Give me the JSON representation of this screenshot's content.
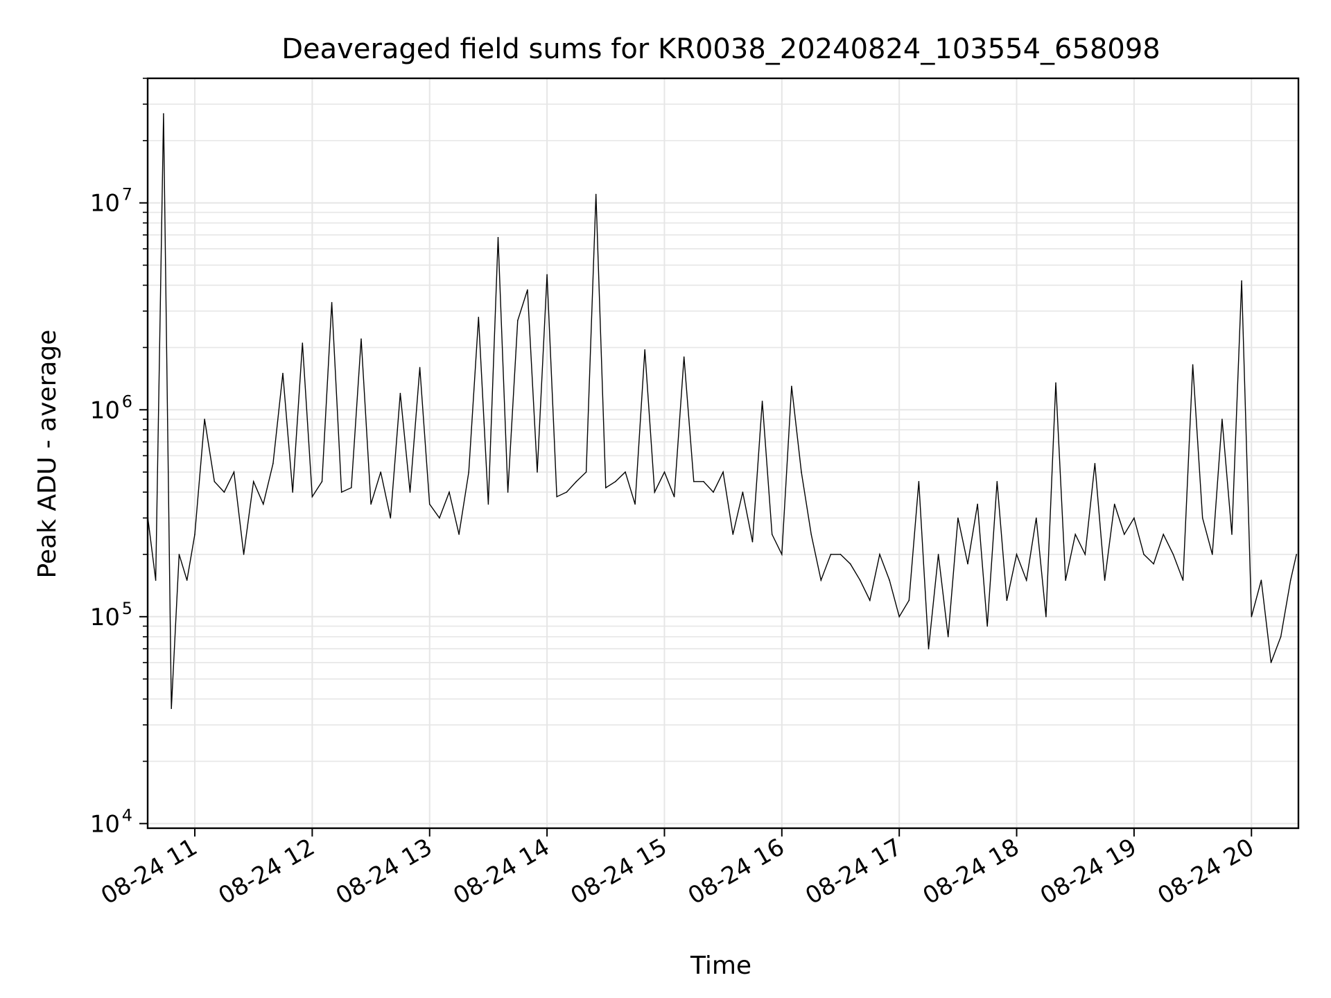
{
  "figure": {
    "title": "Deaveraged field sums for KR0038_20240824_103554_658098",
    "xlabel": "Time",
    "ylabel": "Peak ADU - average"
  },
  "chart_data": {
    "type": "line",
    "title": "Deaveraged field sums for KR0038_20240824_103554_658098",
    "xlabel": "Time",
    "ylabel": "Peak ADU - average",
    "y_scale": "log",
    "ylim": [
      9500,
      40000000
    ],
    "xlim": [
      "2024-08-24 10:35:54",
      "2024-08-24 20:24:00"
    ],
    "x_tick_labels": [
      "08-24 11",
      "08-24 12",
      "08-24 13",
      "08-24 14",
      "08-24 15",
      "08-24 16",
      "08-24 17",
      "08-24 18",
      "08-24 19",
      "08-24 20"
    ],
    "x_ticks": [
      "2024-08-24 11:00",
      "2024-08-24 12:00",
      "2024-08-24 13:00",
      "2024-08-24 14:00",
      "2024-08-24 15:00",
      "2024-08-24 16:00",
      "2024-08-24 17:00",
      "2024-08-24 18:00",
      "2024-08-24 19:00",
      "2024-08-24 20:00"
    ],
    "y_ticks": [
      {
        "value": 10000,
        "base": "10",
        "exp": "4"
      },
      {
        "value": 100000,
        "base": "10",
        "exp": "5"
      },
      {
        "value": 1000000,
        "base": "10",
        "exp": "6"
      },
      {
        "value": 10000000,
        "base": "10",
        "exp": "7"
      }
    ],
    "grid": true,
    "line_color": "#000000",
    "grid_color": "#e6e6e6",
    "series": [
      {
        "x": [
          "2024-08-24 10:36",
          "2024-08-24 10:40",
          "2024-08-24 10:44",
          "2024-08-24 10:48",
          "2024-08-24 10:52",
          "2024-08-24 10:56",
          "2024-08-24 11:00",
          "2024-08-24 11:05",
          "2024-08-24 11:10",
          "2024-08-24 11:15",
          "2024-08-24 11:20",
          "2024-08-24 11:25",
          "2024-08-24 11:30",
          "2024-08-24 11:35",
          "2024-08-24 11:40",
          "2024-08-24 11:45",
          "2024-08-24 11:50",
          "2024-08-24 11:55",
          "2024-08-24 12:00",
          "2024-08-24 12:05",
          "2024-08-24 12:10",
          "2024-08-24 12:15",
          "2024-08-24 12:20",
          "2024-08-24 12:25",
          "2024-08-24 12:30",
          "2024-08-24 12:35",
          "2024-08-24 12:40",
          "2024-08-24 12:45",
          "2024-08-24 12:50",
          "2024-08-24 12:55",
          "2024-08-24 13:00",
          "2024-08-24 13:05",
          "2024-08-24 13:10",
          "2024-08-24 13:15",
          "2024-08-24 13:20",
          "2024-08-24 13:25",
          "2024-08-24 13:30",
          "2024-08-24 13:35",
          "2024-08-24 13:40",
          "2024-08-24 13:45",
          "2024-08-24 13:50",
          "2024-08-24 13:55",
          "2024-08-24 14:00",
          "2024-08-24 14:05",
          "2024-08-24 14:10",
          "2024-08-24 14:15",
          "2024-08-24 14:20",
          "2024-08-24 14:25",
          "2024-08-24 14:30",
          "2024-08-24 14:35",
          "2024-08-24 14:40",
          "2024-08-24 14:45",
          "2024-08-24 14:50",
          "2024-08-24 14:55",
          "2024-08-24 15:00",
          "2024-08-24 15:05",
          "2024-08-24 15:10",
          "2024-08-24 15:15",
          "2024-08-24 15:20",
          "2024-08-24 15:25",
          "2024-08-24 15:30",
          "2024-08-24 15:35",
          "2024-08-24 15:40",
          "2024-08-24 15:45",
          "2024-08-24 15:50",
          "2024-08-24 15:55",
          "2024-08-24 16:00",
          "2024-08-24 16:05",
          "2024-08-24 16:10",
          "2024-08-24 16:15",
          "2024-08-24 16:20",
          "2024-08-24 16:25",
          "2024-08-24 16:30",
          "2024-08-24 16:35",
          "2024-08-24 16:40",
          "2024-08-24 16:45",
          "2024-08-24 16:50",
          "2024-08-24 16:55",
          "2024-08-24 17:00",
          "2024-08-24 17:05",
          "2024-08-24 17:10",
          "2024-08-24 17:15",
          "2024-08-24 17:20",
          "2024-08-24 17:25",
          "2024-08-24 17:30",
          "2024-08-24 17:35",
          "2024-08-24 17:40",
          "2024-08-24 17:45",
          "2024-08-24 17:50",
          "2024-08-24 17:55",
          "2024-08-24 18:00",
          "2024-08-24 18:05",
          "2024-08-24 18:10",
          "2024-08-24 18:15",
          "2024-08-24 18:20",
          "2024-08-24 18:25",
          "2024-08-24 18:30",
          "2024-08-24 18:35",
          "2024-08-24 18:40",
          "2024-08-24 18:45",
          "2024-08-24 18:50",
          "2024-08-24 18:55",
          "2024-08-24 19:00",
          "2024-08-24 19:05",
          "2024-08-24 19:10",
          "2024-08-24 19:15",
          "2024-08-24 19:20",
          "2024-08-24 19:25",
          "2024-08-24 19:30",
          "2024-08-24 19:35",
          "2024-08-24 19:40",
          "2024-08-24 19:45",
          "2024-08-24 19:50",
          "2024-08-24 19:55",
          "2024-08-24 20:00",
          "2024-08-24 20:05",
          "2024-08-24 20:10",
          "2024-08-24 20:15",
          "2024-08-24 20:20",
          "2024-08-24 20:23"
        ],
        "y": [
          300000,
          150000,
          27000000,
          36000,
          200000,
          150000,
          250000,
          900000,
          450000,
          400000,
          500000,
          200000,
          450000,
          350000,
          550000,
          1500000,
          400000,
          2100000,
          380000,
          450000,
          3300000,
          400000,
          420000,
          2200000,
          350000,
          500000,
          300000,
          1200000,
          400000,
          1600000,
          350000,
          300000,
          400000,
          250000,
          500000,
          2800000,
          350000,
          6800000,
          400000,
          2700000,
          3800000,
          500000,
          4500000,
          380000,
          400000,
          450000,
          500000,
          11000000,
          420000,
          450000,
          500000,
          350000,
          1950000,
          400000,
          500000,
          380000,
          1800000,
          450000,
          450000,
          400000,
          500000,
          250000,
          400000,
          230000,
          1100000,
          250000,
          200000,
          1300000,
          500000,
          250000,
          150000,
          200000,
          200000,
          180000,
          150000,
          120000,
          200000,
          150000,
          100000,
          120000,
          450000,
          70000,
          200000,
          80000,
          300000,
          180000,
          350000,
          90000,
          450000,
          120000,
          200000,
          150000,
          300000,
          100000,
          1350000,
          150000,
          250000,
          200000,
          550000,
          150000,
          350000,
          250000,
          300000,
          200000,
          180000,
          250000,
          200000,
          150000,
          1650000,
          300000,
          200000,
          900000,
          250000,
          4200000,
          100000,
          150000,
          60000,
          80000,
          150000,
          200000
        ],
        "_note": ""
      }
    ]
  }
}
